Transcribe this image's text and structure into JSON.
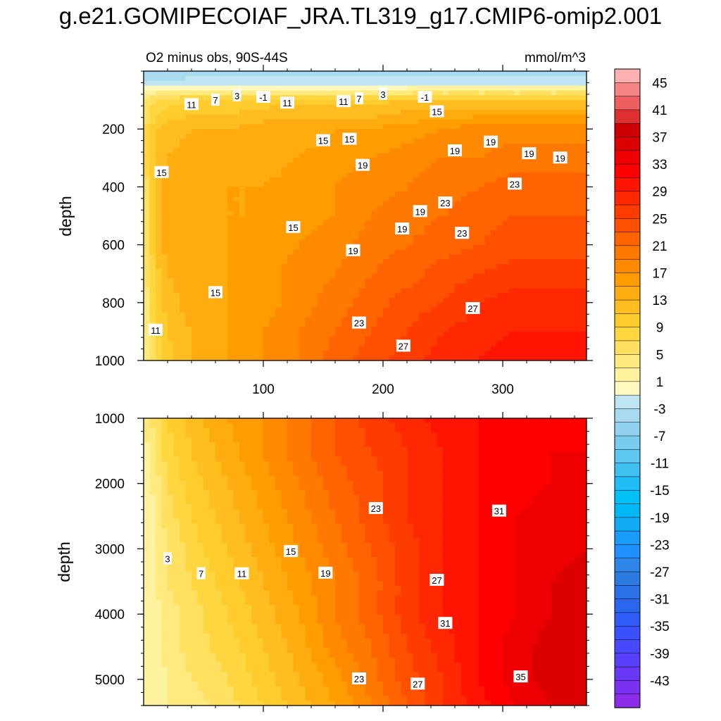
{
  "figure": {
    "title": "g.e21.GOMIPECOIAF_JRA.TL319_g17.CMIP6-omip2.001",
    "subtitle_left": "O2 minus obs, 90S-44S",
    "subtitle_right": "mmol/m^3"
  },
  "chart_data": [
    {
      "type": "heatmap",
      "panel": "upper",
      "title": "O2 minus obs, 90S-44S",
      "units": "mmol/m^3",
      "xlabel": "",
      "ylabel": "depth",
      "xlim": [
        0,
        370
      ],
      "ylim": [
        0,
        1000
      ],
      "y_inverted": true,
      "xticks": [
        100,
        200,
        300
      ],
      "xtick_labels": [
        "100",
        "200",
        "300"
      ],
      "yticks": [
        200,
        400,
        600,
        800,
        1000
      ],
      "ytick_labels": [
        "200",
        "400",
        "600",
        "800",
        "1000"
      ],
      "depth_rows": [
        10,
        50,
        100,
        200,
        300,
        400,
        500,
        600,
        700,
        800,
        900,
        1000
      ],
      "x_cols": [
        0,
        10,
        20,
        40,
        70,
        100,
        130,
        160,
        190,
        220,
        250,
        280,
        310,
        340,
        370
      ],
      "values": [
        [
          -5,
          -5,
          -5,
          -4,
          -4,
          -4,
          -4,
          -4,
          -4,
          -4,
          -4,
          -4,
          -4,
          -4,
          -4
        ],
        [
          -1,
          -1,
          -1,
          -1,
          -1,
          -1,
          -1,
          -1,
          -1,
          -1,
          -1,
          -1,
          -1,
          -1,
          -1
        ],
        [
          5,
          7,
          8,
          9,
          9,
          10,
          10,
          10,
          10,
          11,
          11,
          11,
          11,
          11,
          11
        ],
        [
          6,
          11,
          12,
          13,
          13,
          14,
          14,
          15,
          15,
          16,
          17,
          18,
          18,
          18,
          18
        ],
        [
          6,
          12,
          13,
          14,
          14,
          14,
          15,
          16,
          17,
          18,
          19,
          19,
          20,
          20,
          20
        ],
        [
          5,
          12,
          14,
          14,
          15,
          15,
          16,
          17,
          18,
          19,
          20,
          21,
          22,
          22,
          22
        ],
        [
          4,
          12,
          14,
          14,
          15,
          15,
          16,
          17,
          19,
          20,
          21,
          22,
          23,
          23,
          23
        ],
        [
          4,
          11,
          14,
          14,
          15,
          16,
          17,
          18,
          20,
          21,
          22,
          23,
          24,
          24,
          24
        ],
        [
          4,
          10,
          13,
          14,
          15,
          16,
          18,
          19,
          21,
          22,
          24,
          25,
          26,
          26,
          26
        ],
        [
          3,
          9,
          12,
          14,
          15,
          16,
          18,
          20,
          22,
          24,
          25,
          27,
          28,
          28,
          28
        ],
        [
          3,
          8,
          11,
          13,
          15,
          17,
          19,
          21,
          23,
          25,
          27,
          28,
          29,
          29,
          29
        ],
        [
          3,
          7,
          10,
          13,
          15,
          17,
          19,
          22,
          24,
          26,
          28,
          29,
          30,
          30,
          30
        ]
      ],
      "contour_labels": [
        {
          "text": "-1",
          "x": 100,
          "y": 90
        },
        {
          "text": "-1",
          "x": 235,
          "y": 90
        },
        {
          "text": "7",
          "x": 60,
          "y": 100
        },
        {
          "text": "3",
          "x": 78,
          "y": 85
        },
        {
          "text": "7",
          "x": 180,
          "y": 95
        },
        {
          "text": "3",
          "x": 200,
          "y": 80
        },
        {
          "text": "11",
          "x": 40,
          "y": 115
        },
        {
          "text": "11",
          "x": 120,
          "y": 110
        },
        {
          "text": "11",
          "x": 167,
          "y": 105
        },
        {
          "text": "15",
          "x": 15,
          "y": 350
        },
        {
          "text": "15",
          "x": 150,
          "y": 240
        },
        {
          "text": "15",
          "x": 172,
          "y": 235
        },
        {
          "text": "15",
          "x": 245,
          "y": 140
        },
        {
          "text": "15",
          "x": 125,
          "y": 540
        },
        {
          "text": "15",
          "x": 60,
          "y": 765
        },
        {
          "text": "11",
          "x": 10,
          "y": 895
        },
        {
          "text": "19",
          "x": 183,
          "y": 325
        },
        {
          "text": "19",
          "x": 260,
          "y": 275
        },
        {
          "text": "19",
          "x": 290,
          "y": 245
        },
        {
          "text": "19",
          "x": 322,
          "y": 285
        },
        {
          "text": "19",
          "x": 348,
          "y": 300
        },
        {
          "text": "19",
          "x": 231,
          "y": 485
        },
        {
          "text": "19",
          "x": 216,
          "y": 545
        },
        {
          "text": "19",
          "x": 175,
          "y": 620
        },
        {
          "text": "23",
          "x": 252,
          "y": 455
        },
        {
          "text": "23",
          "x": 310,
          "y": 390
        },
        {
          "text": "23",
          "x": 266,
          "y": 560
        },
        {
          "text": "23",
          "x": 180,
          "y": 870
        },
        {
          "text": "27",
          "x": 275,
          "y": 820
        },
        {
          "text": "27",
          "x": 217,
          "y": 950
        }
      ]
    },
    {
      "type": "heatmap",
      "panel": "lower",
      "title": "",
      "units": "mmol/m^3",
      "xlabel": "",
      "ylabel": "depth",
      "xlim": [
        0,
        370
      ],
      "ylim": [
        1000,
        5400
      ],
      "y_inverted": true,
      "xticks": [
        100,
        200,
        300
      ],
      "xtick_labels": [],
      "yticks": [
        1000,
        2000,
        3000,
        4000,
        5000
      ],
      "ytick_labels": [
        "1000",
        "2000",
        "3000",
        "4000",
        "5000"
      ],
      "depth_rows": [
        1000,
        1500,
        2000,
        2500,
        3000,
        3500,
        4000,
        4500,
        5000,
        5400
      ],
      "x_cols": [
        0,
        10,
        20,
        40,
        70,
        100,
        130,
        160,
        190,
        220,
        250,
        280,
        310,
        340,
        370
      ],
      "values": [
        [
          3,
          6,
          9,
          12,
          15,
          17,
          20,
          23,
          26,
          28,
          30,
          31,
          32,
          32,
          33
        ],
        [
          2,
          5,
          8,
          11,
          14,
          17,
          20,
          23,
          25,
          27,
          29,
          31,
          32,
          33,
          33
        ],
        [
          1,
          4,
          7,
          10,
          13,
          16,
          19,
          22,
          24,
          27,
          29,
          31,
          32,
          33,
          34
        ],
        [
          1,
          3,
          6,
          9,
          12,
          15,
          18,
          21,
          24,
          27,
          29,
          31,
          33,
          34,
          34
        ],
        [
          1,
          3,
          5,
          8,
          11,
          14,
          17,
          20,
          23,
          26,
          29,
          31,
          33,
          34,
          35
        ],
        [
          1,
          3,
          5,
          7,
          10,
          13,
          16,
          19,
          22,
          26,
          29,
          31,
          33,
          35,
          36
        ],
        [
          1,
          2,
          4,
          6,
          9,
          12,
          15,
          19,
          22,
          26,
          29,
          31,
          33,
          35,
          37
        ],
        [
          1,
          2,
          4,
          6,
          8,
          11,
          14,
          18,
          21,
          25,
          28,
          31,
          34,
          36,
          37
        ],
        [
          1,
          2,
          3,
          5,
          7,
          10,
          13,
          16,
          20,
          24,
          27,
          31,
          34,
          36,
          37
        ],
        [
          1,
          2,
          3,
          4,
          6,
          9,
          12,
          15,
          19,
          23,
          27,
          30,
          33,
          35,
          36
        ]
      ],
      "contour_labels": [
        {
          "text": "3",
          "x": 20,
          "y": 3150
        },
        {
          "text": "7",
          "x": 48,
          "y": 3380
        },
        {
          "text": "11",
          "x": 82,
          "y": 3380
        },
        {
          "text": "15",
          "x": 123,
          "y": 3040
        },
        {
          "text": "19",
          "x": 152,
          "y": 3370
        },
        {
          "text": "23",
          "x": 194,
          "y": 2380
        },
        {
          "text": "27",
          "x": 245,
          "y": 3480
        },
        {
          "text": "31",
          "x": 297,
          "y": 2420
        },
        {
          "text": "31",
          "x": 252,
          "y": 4140
        },
        {
          "text": "23",
          "x": 180,
          "y": 4990
        },
        {
          "text": "27",
          "x": 229,
          "y": 5070
        },
        {
          "text": "35",
          "x": 315,
          "y": 4960
        }
      ]
    }
  ],
  "colorbar": {
    "levels": [
      -45,
      -43,
      -41,
      -39,
      -37,
      -35,
      -33,
      -31,
      -29,
      -27,
      -25,
      -23,
      -21,
      -19,
      -17,
      -15,
      -13,
      -11,
      -9,
      -7,
      -5,
      -3,
      -1,
      1,
      3,
      5,
      7,
      9,
      11,
      13,
      15,
      17,
      19,
      21,
      23,
      25,
      27,
      29,
      31,
      33,
      35,
      37,
      39,
      41,
      43,
      45
    ],
    "colors": [
      "#8c2be8",
      "#7a30f0",
      "#6838f5",
      "#5840fa",
      "#4848ff",
      "#3a50ff",
      "#2f5cf6",
      "#2a66ee",
      "#2a70e6",
      "#2a7ae0",
      "#2f85e5",
      "#1e90ff",
      "#1a9cfa",
      "#10aaf5",
      "#00b8f5",
      "#00c0f8",
      "#20bcf5",
      "#40c0f0",
      "#5cc8f2",
      "#78cdef",
      "#90d2ef",
      "#a8daf0",
      "#bfe4f2",
      "#fff9c0",
      "#fff3a0",
      "#ffea80",
      "#ffe060",
      "#ffd640",
      "#ffcc2e",
      "#ffbd20",
      "#ffac10",
      "#ff9c00",
      "#ff8a00",
      "#ff7800",
      "#ff6400",
      "#ff5000",
      "#ff3c00",
      "#ff2800",
      "#ff1400",
      "#ff0000",
      "#ee0000",
      "#dd0000",
      "#cc0000",
      "#dd3030",
      "#ee6060",
      "#f58585",
      "#ffb0b0"
    ],
    "labels": [
      "45",
      "41",
      "37",
      "33",
      "29",
      "25",
      "21",
      "17",
      "13",
      "9",
      "5",
      "1",
      "-3",
      "-7",
      "-11",
      "-15",
      "-19",
      "-23",
      "-27",
      "-31",
      "-35",
      "-39",
      "-43"
    ]
  }
}
